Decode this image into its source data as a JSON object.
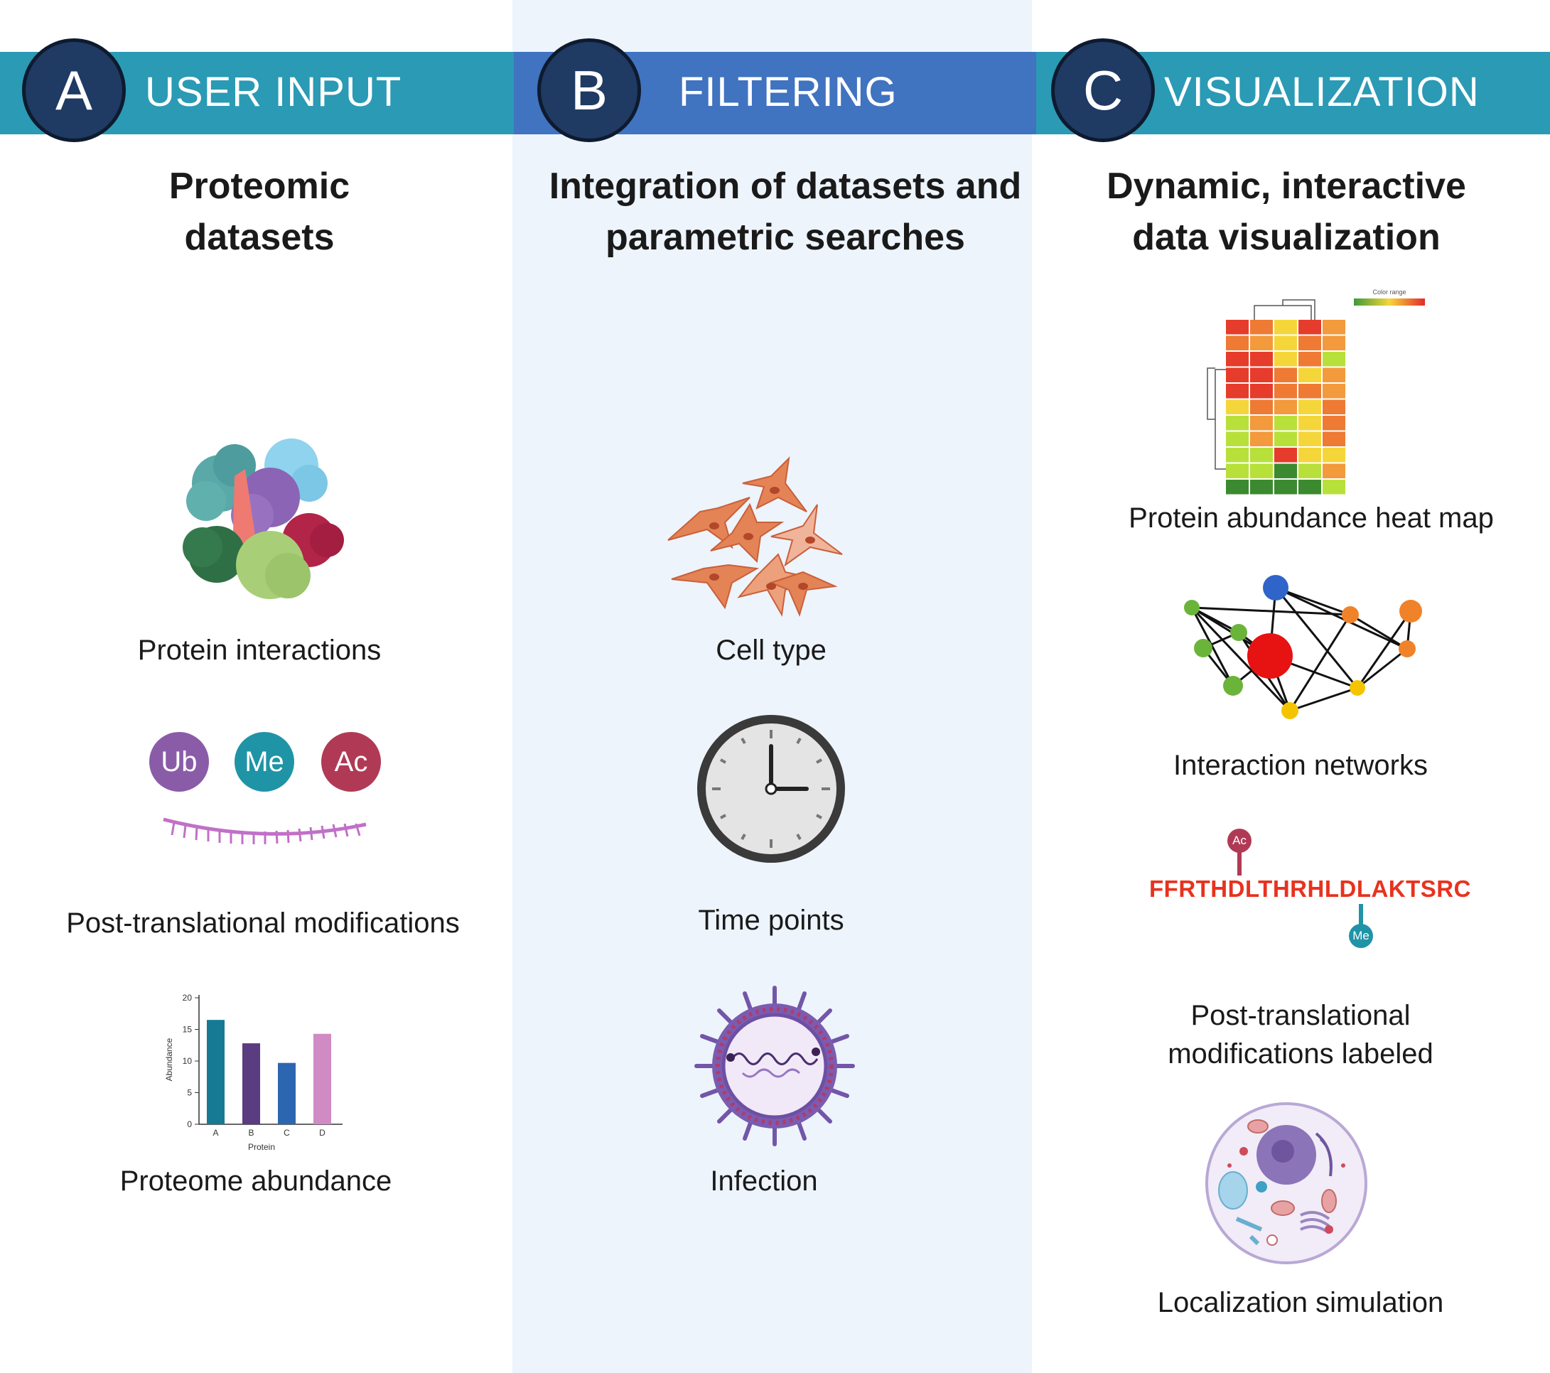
{
  "columns": [
    {
      "letter": "A",
      "header": "USER INPUT",
      "heading": [
        "Proteomic",
        "datasets"
      ],
      "items": [
        "Protein interactions",
        "Post-translational modifications",
        "Proteome abundance"
      ]
    },
    {
      "letter": "B",
      "header": "FILTERING",
      "heading": [
        "Integration of datasets and",
        "parametric searches"
      ],
      "items": [
        "Cell type",
        "Time points",
        "Infection"
      ]
    },
    {
      "letter": "C",
      "header": "VISUALIZATION",
      "heading": [
        "Dynamic, interactive",
        "data visualization"
      ],
      "items": [
        "Protein abundance heat map",
        "Interaction networks",
        "Post-translational",
        "modifications labeled",
        "Localization simulation"
      ]
    }
  ],
  "modifications": [
    {
      "label": "Ub",
      "color": "#8a5ca8"
    },
    {
      "label": "Me",
      "color": "#1f94a6"
    },
    {
      "label": "Ac",
      "color": "#b03a55"
    }
  ],
  "mini_chart": {
    "type": "bar",
    "categories": [
      "A",
      "B",
      "C",
      "D"
    ],
    "values": [
      16.5,
      12.8,
      9.7,
      14.3
    ],
    "colors": [
      "#177a94",
      "#5a3c80",
      "#2c66b0",
      "#d08ac4"
    ],
    "ylabel": "Abundance",
    "xlabel": "Protein",
    "yticks": [
      0,
      5,
      10,
      15,
      20
    ],
    "ylim": [
      0,
      20
    ]
  },
  "heatmap": {
    "legend_label": "Color range",
    "cells": [
      [
        0,
        1,
        2,
        0,
        3
      ],
      [
        1,
        3,
        2,
        1,
        3
      ],
      [
        0,
        0,
        2,
        1,
        4
      ],
      [
        0,
        0,
        1,
        2,
        3
      ],
      [
        0,
        0,
        1,
        1,
        3
      ],
      [
        2,
        1,
        3,
        2,
        1
      ],
      [
        4,
        3,
        4,
        2,
        1
      ],
      [
        4,
        3,
        4,
        2,
        1
      ],
      [
        4,
        4,
        0,
        2,
        2
      ],
      [
        4,
        4,
        5,
        4,
        3
      ],
      [
        5,
        5,
        5,
        5,
        4
      ]
    ],
    "palette": [
      "#e63c2c",
      "#ee7a34",
      "#f5d63a",
      "#f39a3c",
      "#b8e03a",
      "#3c8a30"
    ]
  },
  "sequence": "FFRTHDLTHRHLDLAKTSRC",
  "sequence_mods": [
    {
      "label": "Ac",
      "color": "#b03a55"
    },
    {
      "label": "Me",
      "color": "#1f94a6"
    }
  ]
}
